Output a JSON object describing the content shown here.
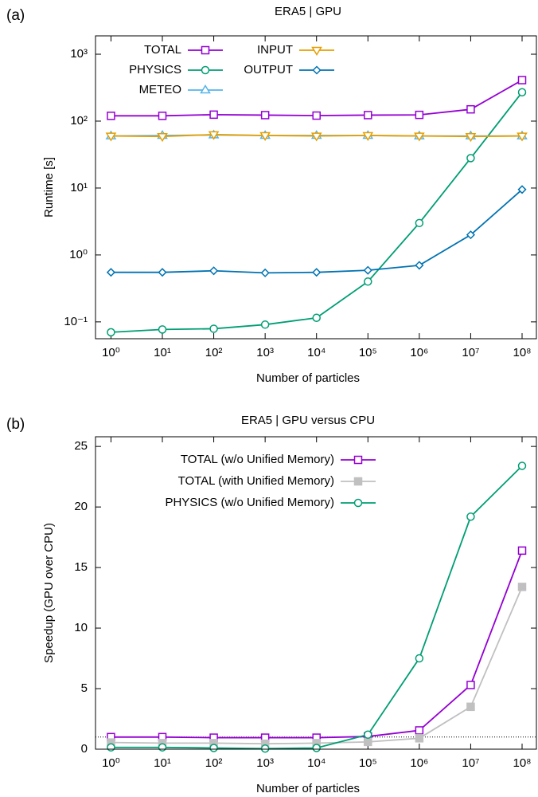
{
  "chart_data": [
    {
      "type": "line",
      "panel_label": "(a)",
      "title": "ERA5 | GPU",
      "x_label": "Number of particles",
      "y_label": "Runtime [s]",
      "xlog": true,
      "ylog": true,
      "x": [
        1,
        10,
        100,
        1000,
        10000,
        100000,
        1000000,
        10000000,
        100000000
      ],
      "xlim": [
        0.5,
        190000000
      ],
      "ylim": [
        0.056,
        1880
      ],
      "xticks": [
        {
          "value": 1,
          "label": "10⁰"
        },
        {
          "value": 10,
          "label": "10¹"
        },
        {
          "value": 100,
          "label": "10²"
        },
        {
          "value": 1000,
          "label": "10³"
        },
        {
          "value": 10000,
          "label": "10⁴"
        },
        {
          "value": 100000,
          "label": "10⁵"
        },
        {
          "value": 1000000,
          "label": "10⁶"
        },
        {
          "value": 10000000,
          "label": "10⁷"
        },
        {
          "value": 100000000,
          "label": "10⁸"
        }
      ],
      "yticks": [
        {
          "value": 0.1,
          "label": "10⁻¹"
        },
        {
          "value": 1,
          "label": "10⁰"
        },
        {
          "value": 10,
          "label": "10¹"
        },
        {
          "value": 100,
          "label": "10²"
        },
        {
          "value": 1000,
          "label": "10³"
        }
      ],
      "series": [
        {
          "name": "TOTAL",
          "color": "#9400d3",
          "marker": "square-open",
          "values": [
            120,
            120,
            125,
            123,
            121,
            123,
            124,
            150,
            410
          ]
        },
        {
          "name": "PHYSICS",
          "color": "#009e73",
          "marker": "circle-open",
          "values": [
            0.07,
            0.077,
            0.079,
            0.091,
            0.115,
            0.4,
            3.0,
            28,
            270
          ]
        },
        {
          "name": "METEO",
          "color": "#56b4e9",
          "marker": "triangle-open",
          "values": [
            60,
            61,
            62,
            61,
            61,
            61,
            60,
            60,
            60
          ]
        },
        {
          "name": "INPUT",
          "color": "#e69f00",
          "marker": "triangle-down-open",
          "values": [
            60,
            59,
            63,
            61,
            60,
            61,
            60,
            59,
            60
          ]
        },
        {
          "name": "OUTPUT",
          "color": "#0072b2",
          "marker": "diamond-open",
          "values": [
            0.55,
            0.55,
            0.58,
            0.54,
            0.55,
            0.59,
            0.7,
            2.0,
            9.5
          ]
        }
      ]
    },
    {
      "type": "line",
      "panel_label": "(b)",
      "title": "ERA5 | GPU versus CPU",
      "x_label": "Number of particles",
      "y_label": "Speedup (GPU over CPU)",
      "xlog": true,
      "ylog": false,
      "x": [
        1,
        10,
        100,
        1000,
        10000,
        100000,
        1000000,
        10000000,
        100000000
      ],
      "xlim": [
        0.5,
        190000000
      ],
      "ylim": [
        0,
        25.8
      ],
      "xticks": [
        {
          "value": 1,
          "label": "10⁰"
        },
        {
          "value": 10,
          "label": "10¹"
        },
        {
          "value": 100,
          "label": "10²"
        },
        {
          "value": 1000,
          "label": "10³"
        },
        {
          "value": 10000,
          "label": "10⁴"
        },
        {
          "value": 100000,
          "label": "10⁵"
        },
        {
          "value": 1000000,
          "label": "10⁶"
        },
        {
          "value": 10000000,
          "label": "10⁷"
        },
        {
          "value": 100000000,
          "label": "10⁸"
        }
      ],
      "yticks": [
        0,
        5,
        10,
        15,
        20,
        25
      ],
      "reference_line": 1,
      "series": [
        {
          "name": "TOTAL (w/o Unified Memory)",
          "color": "#9400d3",
          "marker": "square-open",
          "values": [
            1.0,
            1.0,
            0.95,
            0.95,
            0.95,
            1.05,
            1.55,
            5.3,
            16.4
          ]
        },
        {
          "name": "TOTAL (with Unified Memory)",
          "color": "#c0c0c0",
          "marker": "square-filled",
          "values": [
            0.55,
            0.5,
            0.5,
            0.45,
            0.5,
            0.6,
            0.9,
            3.5,
            13.4
          ]
        },
        {
          "name": "PHYSICS (w/o Unified Memory)",
          "color": "#009e73",
          "marker": "circle-open",
          "values": [
            0.15,
            0.15,
            0.1,
            0.05,
            0.1,
            1.2,
            7.5,
            19.2,
            23.4
          ]
        }
      ]
    }
  ]
}
